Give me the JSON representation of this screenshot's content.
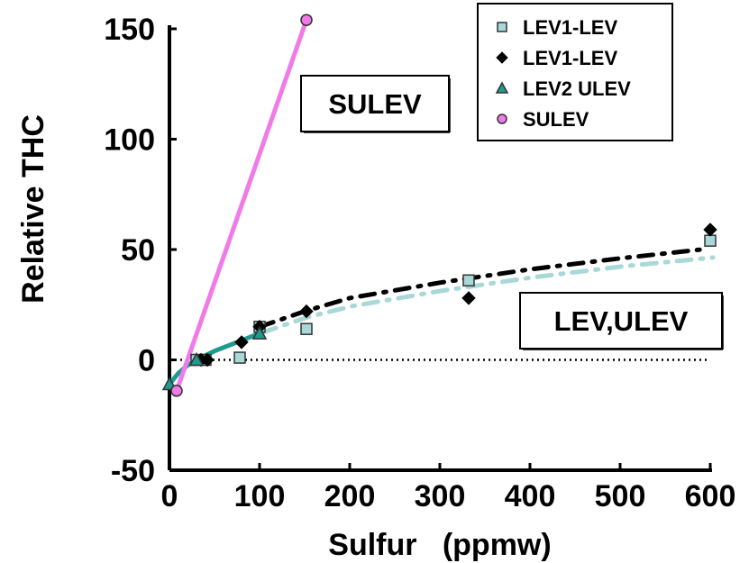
{
  "chart_data": {
    "type": "scatter",
    "xlabel": "Sulfur   (ppmw)",
    "ylabel": "Relative THC",
    "xlim": [
      0,
      600
    ],
    "ylim": [
      -50,
      150
    ],
    "xticks": [
      "0",
      "100",
      "200",
      "300",
      "400",
      "500",
      "600"
    ],
    "yticks": [
      "-50",
      "0",
      "50",
      "100",
      "150"
    ],
    "grid": false,
    "legend_position": "top-right",
    "series": [
      {
        "name": "LEV1-LEV",
        "marker": "square",
        "color": "#a8d8d8",
        "points": [
          [
            30,
            0
          ],
          [
            40,
            0
          ],
          [
            78,
            1
          ],
          [
            100,
            15
          ],
          [
            152,
            14
          ],
          [
            332,
            36
          ],
          [
            600,
            54
          ]
        ]
      },
      {
        "name": "LEV1-LEV",
        "marker": "diamond",
        "color": "#000000",
        "points": [
          [
            35,
            0
          ],
          [
            42,
            0
          ],
          [
            80,
            8
          ],
          [
            100,
            15
          ],
          [
            152,
            22
          ],
          [
            332,
            28
          ],
          [
            600,
            59
          ]
        ]
      },
      {
        "name": "LEV2 ULEV",
        "marker": "triangle",
        "color": "#1e9a8e",
        "points": [
          [
            0,
            -11
          ],
          [
            30,
            0
          ],
          [
            100,
            12
          ]
        ]
      },
      {
        "name": "SULEV",
        "marker": "circle",
        "color": "#f07be8",
        "points": [
          [
            8,
            -14
          ],
          [
            152,
            154
          ]
        ]
      }
    ],
    "trendlines": [
      {
        "series": "LEV1-LEV (square)",
        "style": "dash-dot",
        "color": "#a8d8d8",
        "points": [
          [
            100,
            14
          ],
          [
            150,
            21
          ],
          [
            200,
            26
          ],
          [
            300,
            33
          ],
          [
            400,
            39
          ],
          [
            500,
            44
          ],
          [
            600,
            48
          ]
        ]
      },
      {
        "series": "LEV1-LEV (diamond)",
        "style": "dash-dot",
        "color": "#000000",
        "points": [
          [
            100,
            15
          ],
          [
            150,
            22
          ],
          [
            200,
            28
          ],
          [
            300,
            35
          ],
          [
            400,
            41
          ],
          [
            500,
            46
          ],
          [
            590,
            50
          ]
        ]
      },
      {
        "series": "LEV2 ULEV",
        "style": "solid",
        "color": "#1e9a8e",
        "points": [
          [
            0,
            -11
          ],
          [
            10,
            -6
          ],
          [
            20,
            -2.5
          ],
          [
            30,
            0
          ],
          [
            50,
            4
          ],
          [
            75,
            8
          ],
          [
            100,
            12
          ]
        ]
      },
      {
        "series": "SULEV",
        "style": "solid",
        "color": "#f07be8",
        "points": [
          [
            8,
            -14
          ],
          [
            152,
            154
          ]
        ]
      }
    ],
    "reference_line": {
      "y": 0,
      "style": "dotted",
      "color": "#000000"
    },
    "annotations": [
      "SULEV",
      "LEV,ULEV"
    ]
  }
}
